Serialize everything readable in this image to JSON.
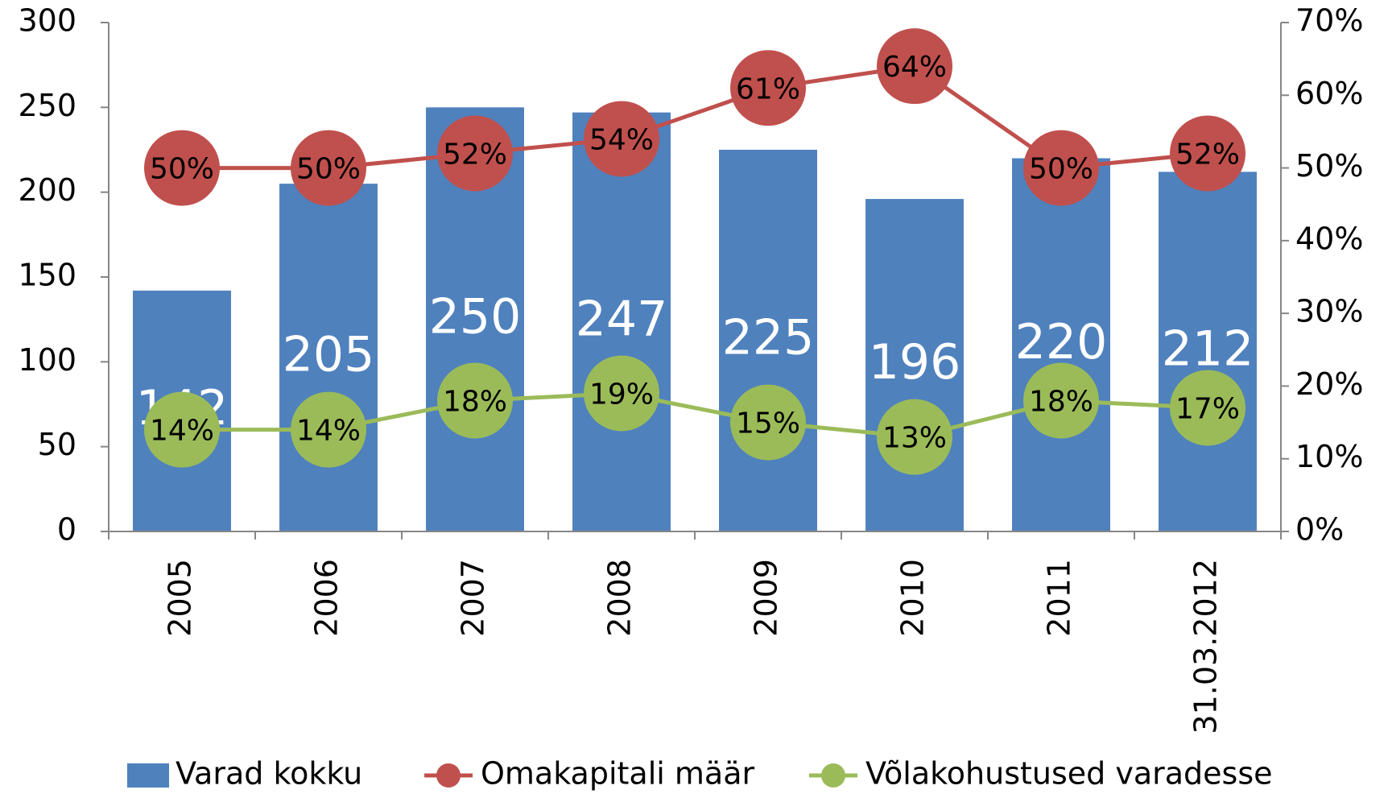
{
  "chart_data": {
    "type": "bar",
    "categories": [
      "2005",
      "2006",
      "2007",
      "2008",
      "2009",
      "2010",
      "2011",
      "31.03.2012"
    ],
    "series": [
      {
        "name": "Varad kokku",
        "type": "bar",
        "color": "#4f81bd",
        "axis": "y",
        "values": [
          142,
          205,
          250,
          247,
          225,
          196,
          220,
          212
        ]
      },
      {
        "name": "Omakapitali määr",
        "type": "line",
        "color": "#c0504d",
        "axis": "y2",
        "values": [
          50,
          50,
          52,
          54,
          61,
          64,
          50,
          52
        ],
        "value_labels": [
          "50%",
          "50%",
          "52%",
          "54%",
          "61%",
          "64%",
          "50%",
          "52%"
        ]
      },
      {
        "name": "Võlakohustused varadesse",
        "type": "line",
        "color": "#9bbb59",
        "axis": "y2",
        "values": [
          14,
          14,
          18,
          19,
          15,
          13,
          18,
          17
        ],
        "value_labels": [
          "14%",
          "14%",
          "18%",
          "19%",
          "15%",
          "13%",
          "18%",
          "17%"
        ]
      }
    ],
    "ylim": [
      0,
      300
    ],
    "yticks": [
      0,
      50,
      100,
      150,
      200,
      250,
      300
    ],
    "y2lim": [
      0,
      70
    ],
    "y2ticks": [
      {
        "value": 0,
        "label": "0%"
      },
      {
        "value": 10,
        "label": "10%"
      },
      {
        "value": 20,
        "label": "20%"
      },
      {
        "value": 30,
        "label": "30%"
      },
      {
        "value": 40,
        "label": "40%"
      },
      {
        "value": 50,
        "label": "50%"
      },
      {
        "value": 60,
        "label": "60%"
      },
      {
        "value": 70,
        "label": "70%"
      }
    ],
    "grid": false,
    "legend": "bottom"
  }
}
